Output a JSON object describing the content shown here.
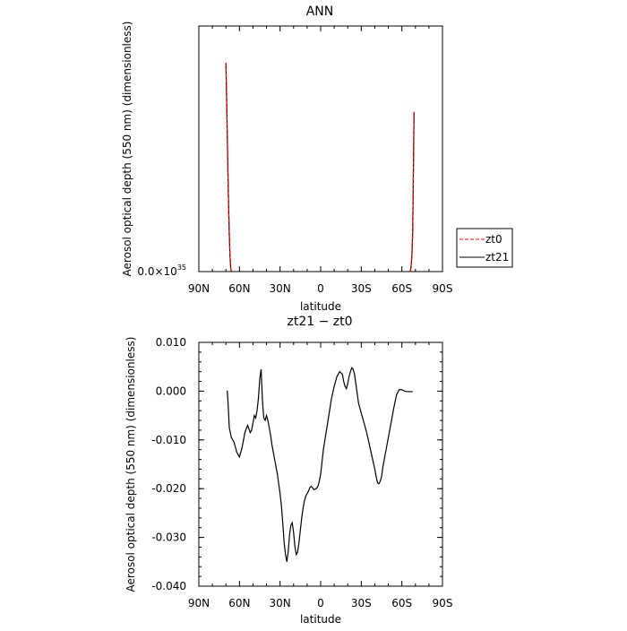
{
  "chart_data": [
    {
      "type": "line",
      "title": "ANN",
      "xlabel": "latitude",
      "ylabel": "Aerosol optical depth (550 nm) (dimensionless)",
      "xlim": [
        90,
        -90
      ],
      "x_ticks": [
        90,
        60,
        30,
        0,
        -30,
        -60,
        -90
      ],
      "x_tick_labels": [
        "90N",
        "60N",
        "30N",
        "0",
        "30S",
        "60S",
        "90S"
      ],
      "ylim": [
        0,
        1.2e+35
      ],
      "y_ticks": [
        0
      ],
      "y_tick_labels_main": [
        "0.0×10"
      ],
      "y_tick_labels_exp": [
        "35"
      ],
      "legend_position": "right",
      "series": [
        {
          "name": "zt0",
          "color": "#ff0000",
          "dash": "dashed",
          "x": [
            70.0,
            69.5,
            69.0,
            68.5,
            68.0,
            67.5,
            67.0,
            66.5,
            66.0,
            -66.0,
            -66.5,
            -67.0,
            -67.5,
            -68.0,
            -68.5,
            -69.0
          ],
          "y": [
            1.02e+35,
            8.5e+34,
            6.6e+34,
            4.8e+34,
            3.2e+34,
            1.8e+34,
            8e+33,
            2e+33,
            0.0,
            0.0,
            1e+33,
            4e+33,
            9e+33,
            2e+34,
            4.8e+34,
            7.8e+34
          ]
        },
        {
          "name": "zt21",
          "color": "#000000",
          "dash": "solid",
          "x": [
            70.0,
            69.5,
            69.0,
            68.5,
            68.0,
            67.5,
            67.0,
            66.5,
            66.0,
            -66.0,
            -66.5,
            -67.0,
            -67.5,
            -68.0,
            -68.5,
            -69.0
          ],
          "y": [
            1.02e+35,
            8.5e+34,
            6.6e+34,
            4.8e+34,
            3.2e+34,
            1.8e+34,
            8e+33,
            2e+33,
            0.0,
            0.0,
            1e+33,
            4e+33,
            9e+33,
            2e+34,
            4.8e+34,
            7.8e+34
          ]
        }
      ]
    },
    {
      "type": "line",
      "title": "zt21 − zt0",
      "xlabel": "latitude",
      "ylabel": "Aerosol optical depth (550 nm) (dimensionless)",
      "xlim": [
        90,
        -90
      ],
      "x_ticks": [
        90,
        60,
        30,
        0,
        -30,
        -60,
        -90
      ],
      "x_tick_labels": [
        "90N",
        "60N",
        "30N",
        "0",
        "30S",
        "60S",
        "90S"
      ],
      "ylim": [
        -0.04,
        0.01
      ],
      "y_ticks": [
        0.01,
        0.0,
        -0.01,
        -0.02,
        -0.03,
        -0.04
      ],
      "y_tick_labels": [
        "0.010",
        "0.000",
        "-0.010",
        "-0.020",
        "-0.030",
        "-0.040"
      ],
      "series": [
        {
          "name": "zt21 − zt0",
          "color": "#000000",
          "x": [
            69.5,
            69,
            68.5,
            67.5,
            66,
            64,
            62,
            60,
            58,
            56,
            54,
            52,
            51,
            50,
            49,
            48,
            47,
            46,
            45,
            44,
            43,
            42,
            41,
            40,
            39,
            38,
            37,
            36,
            35,
            34,
            32,
            30,
            29,
            28,
            27,
            26,
            25,
            24,
            23,
            22,
            21,
            20,
            19,
            18,
            17,
            16,
            15,
            14,
            13,
            12,
            11,
            10,
            9,
            8,
            7,
            6,
            5,
            4,
            3,
            2,
            1,
            0,
            -1,
            -2,
            -4,
            -6,
            -8,
            -10,
            -12,
            -14,
            -16,
            -17,
            -18,
            -19,
            -20,
            -21,
            -22,
            -23,
            -24,
            -25,
            -26,
            -27,
            -28,
            -30,
            -32,
            -34,
            -36,
            -38,
            -40,
            -41,
            -42,
            -43,
            -44,
            -45,
            -46,
            -48,
            -50,
            -52,
            -54,
            -56,
            -58,
            -60,
            -62,
            -64,
            -66,
            -68
          ],
          "y": [
            0.0,
            0.0,
            -0.002,
            -0.0075,
            -0.0095,
            -0.0105,
            -0.0125,
            -0.0135,
            -0.0115,
            -0.0085,
            -0.007,
            -0.0085,
            -0.008,
            -0.0065,
            -0.005,
            -0.0055,
            -0.004,
            -0.0015,
            0.0025,
            0.0045,
            -0.002,
            -0.0055,
            -0.006,
            -0.005,
            -0.006,
            -0.0075,
            -0.009,
            -0.011,
            -0.0125,
            -0.014,
            -0.017,
            -0.021,
            -0.0235,
            -0.027,
            -0.031,
            -0.0335,
            -0.035,
            -0.033,
            -0.0295,
            -0.0275,
            -0.027,
            -0.029,
            -0.032,
            -0.0335,
            -0.033,
            -0.031,
            -0.0285,
            -0.026,
            -0.024,
            -0.0225,
            -0.0215,
            -0.021,
            -0.0205,
            -0.0198,
            -0.0195,
            -0.0198,
            -0.0202,
            -0.0201,
            -0.0199,
            -0.0195,
            -0.0185,
            -0.017,
            -0.0145,
            -0.012,
            -0.0085,
            -0.005,
            -0.0015,
            0.001,
            0.003,
            0.004,
            0.0035,
            0.002,
            0.001,
            0.0005,
            0.0015,
            0.003,
            0.004,
            0.0048,
            0.0045,
            0.0035,
            0.0015,
            -0.0005,
            -0.0025,
            -0.0045,
            -0.0065,
            -0.0085,
            -0.011,
            -0.0135,
            -0.016,
            -0.0175,
            -0.0188,
            -0.019,
            -0.0185,
            -0.0175,
            -0.0155,
            -0.0125,
            -0.0095,
            -0.0065,
            -0.0035,
            -0.0008,
            0.0003,
            0.0003,
            0.0,
            -0.0001,
            -0.0001,
            -0.0001
          ]
        }
      ]
    }
  ]
}
